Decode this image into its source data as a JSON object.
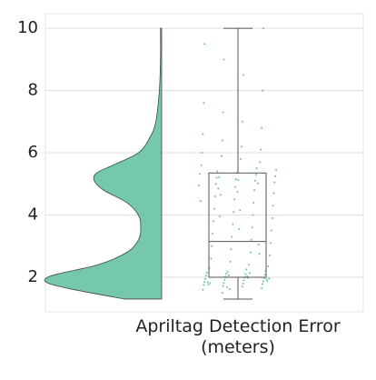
{
  "chart_data": {
    "type": "raincloud",
    "categories": [
      "Apriltag Detection Error\n(meters)"
    ],
    "color": "#66c2a5",
    "box_color": "#555555",
    "ylim": [
      0.89,
      10.47
    ],
    "yticks": [
      2,
      4,
      6,
      8,
      10
    ],
    "grid": true,
    "box": {
      "min": 1.3,
      "q1": 2.0,
      "median": 3.15,
      "q3": 5.35,
      "max": 10.0
    },
    "violin": {
      "y": [
        1.3,
        1.6,
        1.8,
        1.95,
        2.1,
        2.4,
        2.8,
        3.2,
        3.6,
        4.0,
        4.4,
        4.8,
        5.1,
        5.35,
        5.6,
        6.0,
        6.5,
        7.0,
        8.0,
        9.0,
        10.0
      ],
      "density": [
        0.32,
        0.75,
        0.97,
        1.0,
        0.9,
        0.55,
        0.3,
        0.2,
        0.18,
        0.2,
        0.3,
        0.5,
        0.58,
        0.56,
        0.42,
        0.2,
        0.1,
        0.05,
        0.02,
        0.01,
        0.01
      ]
    },
    "points": [
      1.5,
      1.6,
      1.65,
      1.7,
      1.72,
      1.75,
      1.78,
      1.8,
      1.82,
      1.85,
      1.87,
      1.9,
      1.92,
      1.95,
      1.97,
      2.0,
      2.02,
      2.05,
      2.08,
      2.1,
      2.12,
      2.15,
      2.2,
      2.25,
      1.68,
      1.84,
      1.93,
      2.03,
      2.18,
      1.76,
      1.88,
      1.98,
      2.06,
      2.3,
      2.35,
      2.4,
      1.62,
      1.81,
      1.96,
      2.14,
      2.5,
      2.6,
      2.7,
      2.8,
      2.9,
      3.0,
      3.1,
      3.2,
      3.3,
      3.4,
      3.5,
      3.6,
      3.7,
      3.8,
      3.9,
      4.0,
      4.1,
      4.2,
      4.3,
      4.4,
      4.5,
      4.6,
      4.7,
      4.8,
      4.9,
      5.0,
      5.05,
      5.1,
      5.15,
      5.2,
      5.25,
      5.3,
      5.35,
      5.4,
      5.45,
      5.5,
      4.75,
      4.85,
      4.95,
      5.02,
      5.12,
      5.22,
      5.32,
      3.05,
      3.55,
      3.95,
      4.45,
      2.75,
      4.15,
      4.65,
      5.6,
      5.7,
      5.8,
      5.9,
      6.0,
      6.1,
      6.2,
      6.4,
      6.6,
      6.8,
      7.0,
      7.3,
      7.6,
      8.0,
      8.5,
      9.0,
      9.5,
      10.0
    ]
  }
}
